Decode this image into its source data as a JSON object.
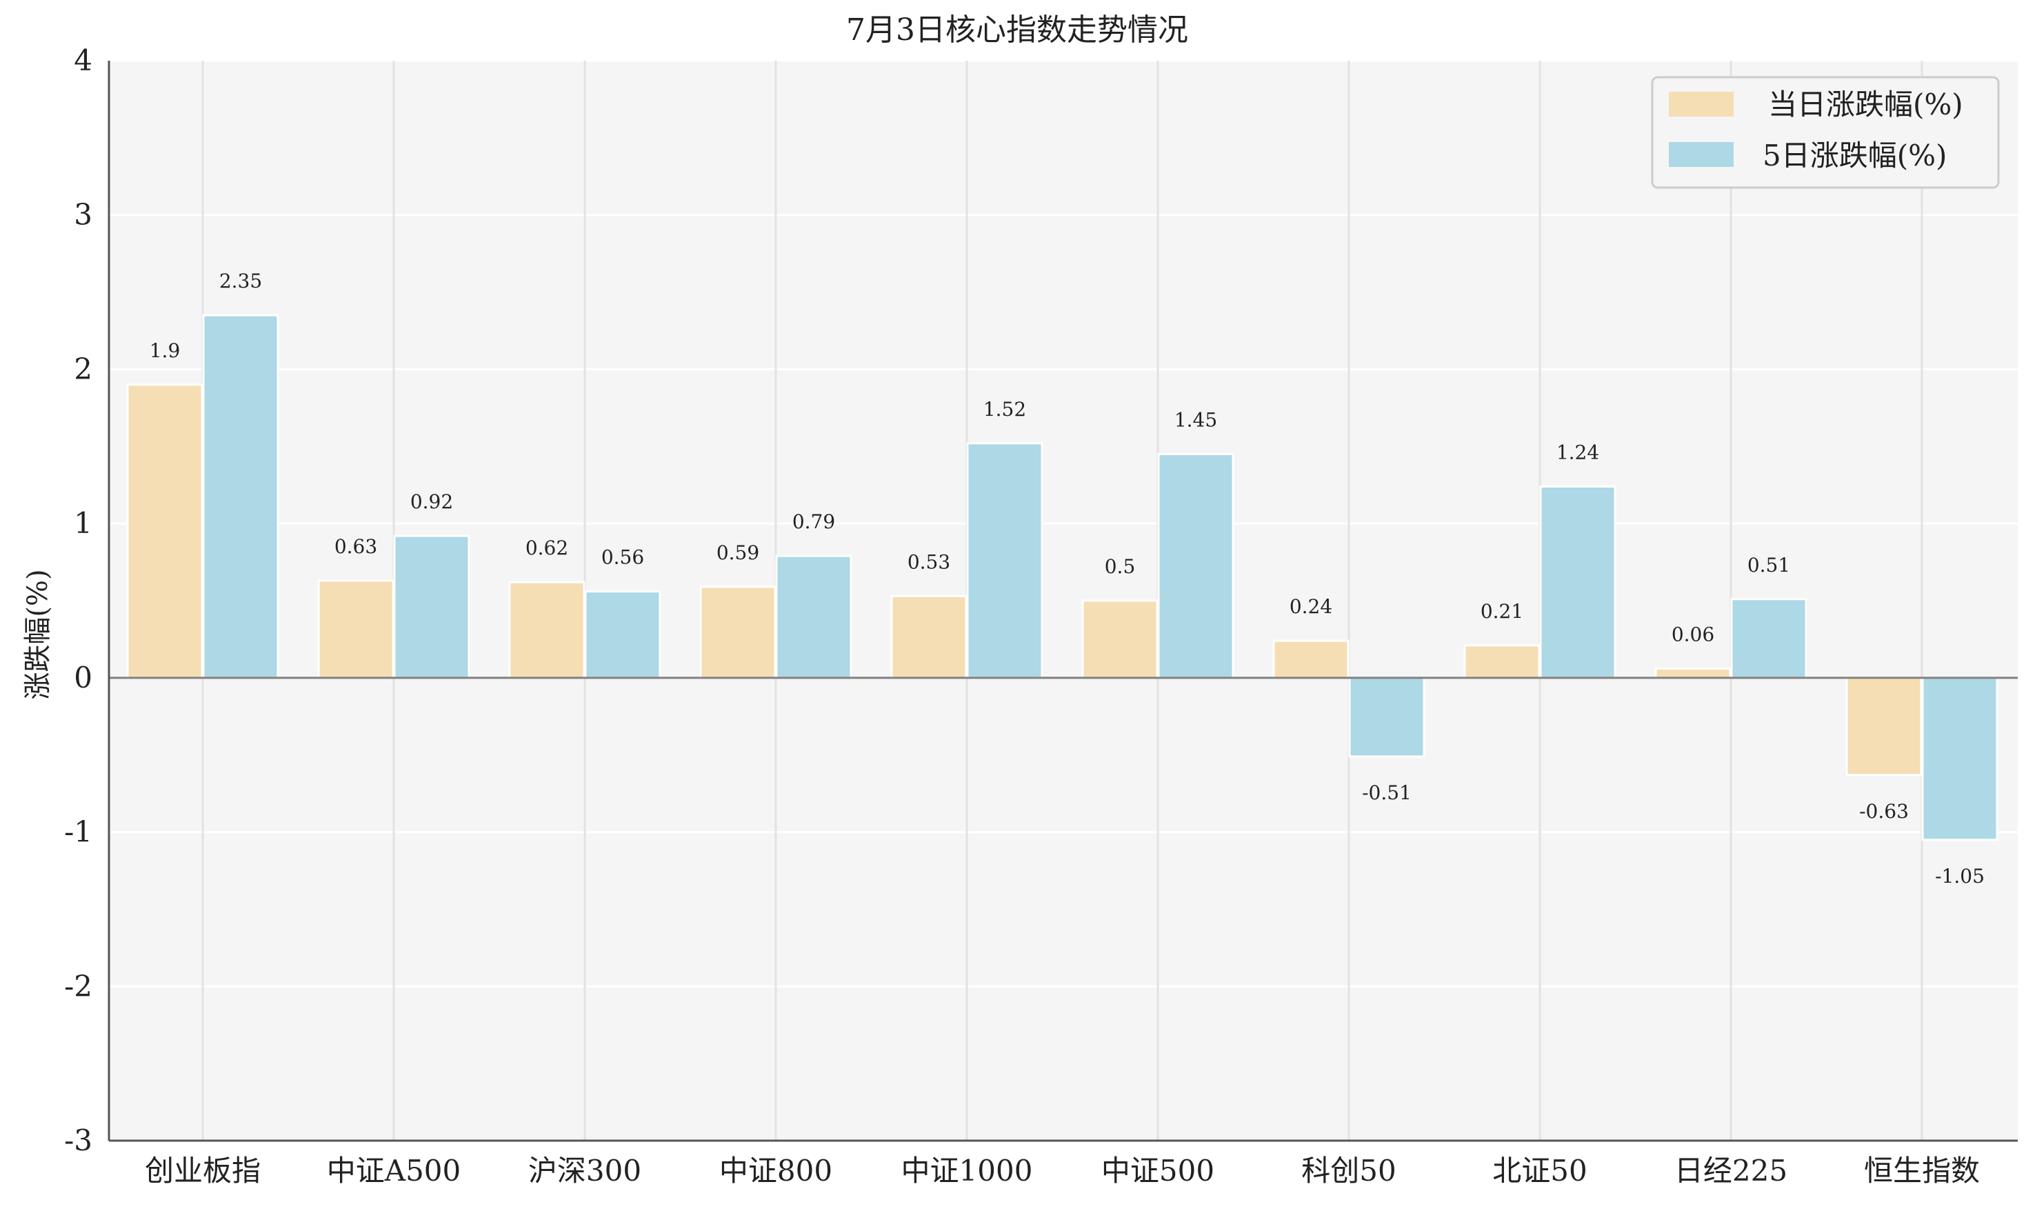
{
  "chart_data": {
    "type": "bar",
    "title": "7月3日核心指数走势情况",
    "xlabel": "",
    "ylabel": "涨跌幅(%)",
    "ylim": [
      -3,
      4
    ],
    "yticks": [
      "-3",
      "-2",
      "-1",
      "0",
      "1",
      "2",
      "3",
      "4"
    ],
    "categories": [
      "创业板指",
      "中证A500",
      "沪深300",
      "中证800",
      "中证1000",
      "中证500",
      "科创50",
      "北证50",
      "日经225",
      "恒生指数"
    ],
    "series": [
      {
        "name": "当日涨跌幅(%)",
        "color": "#F5DEB3",
        "values": [
          1.9,
          0.63,
          0.62,
          0.59,
          0.53,
          0.5,
          0.24,
          0.21,
          0.06,
          -0.63
        ],
        "labels": [
          "1.9",
          "0.63",
          "0.62",
          "0.59",
          "0.53",
          "0.5",
          "0.24",
          "0.21",
          "0.06",
          "-0.63"
        ]
      },
      {
        "name": "5日涨跌幅(%)",
        "color": "#ADD8E6",
        "values": [
          2.35,
          0.92,
          0.56,
          0.79,
          1.52,
          1.45,
          -0.51,
          1.24,
          0.51,
          -1.05
        ],
        "labels": [
          "2.35",
          "0.92",
          "0.56",
          "0.79",
          "1.52",
          "1.45",
          "-0.51",
          "1.24",
          "0.51",
          "-1.05"
        ]
      }
    ],
    "grid": true,
    "legend": "top-right",
    "background": "#F5F5F5"
  }
}
